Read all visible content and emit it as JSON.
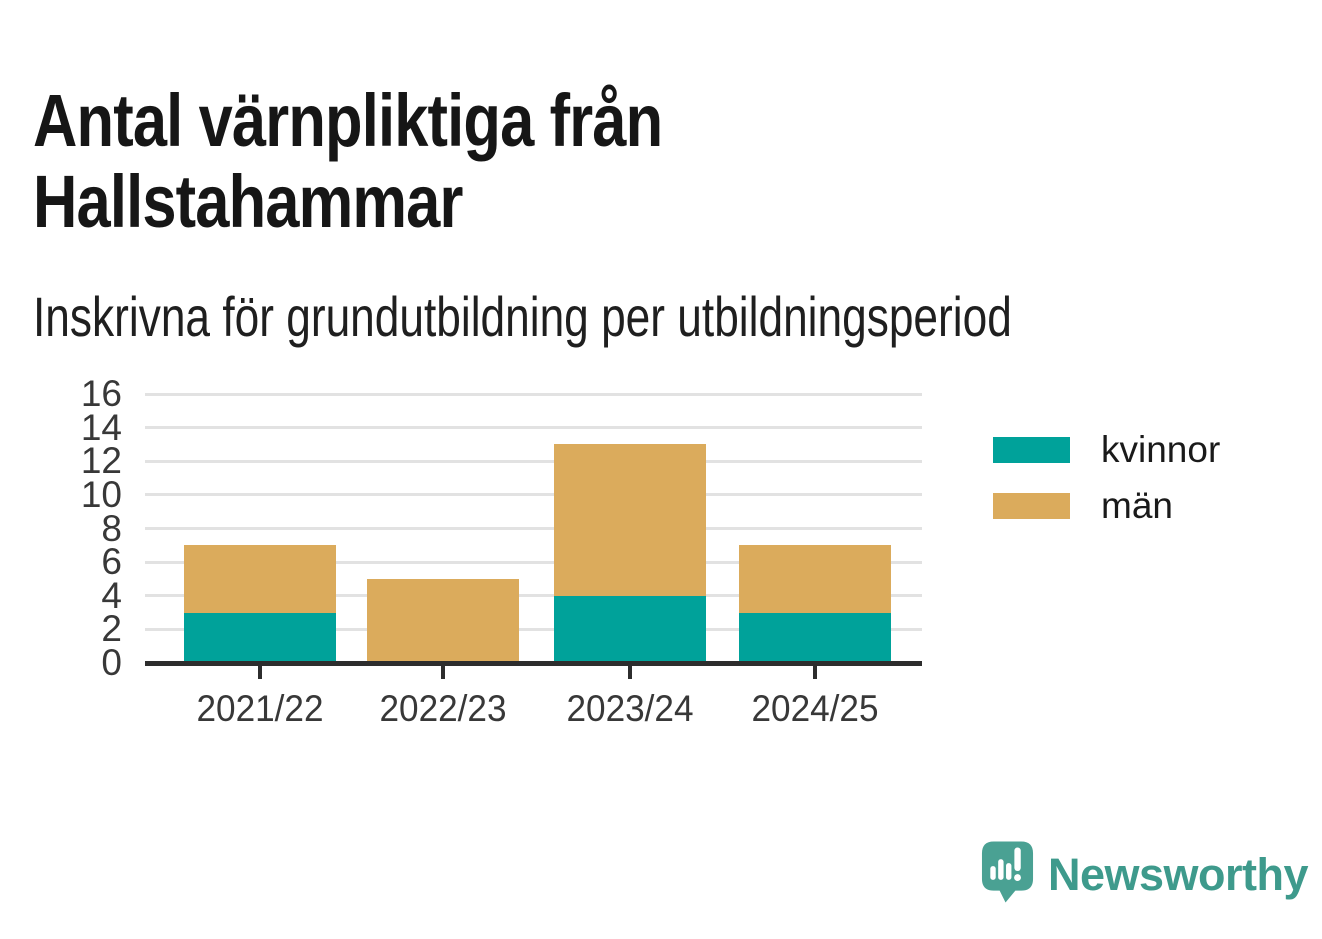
{
  "chart_data": {
    "type": "bar",
    "stacked": true,
    "title": "Antal värnpliktiga från Hallstahammar",
    "subtitle": "Inskrivna för grundutbildning per utbildningsperiod",
    "categories": [
      "2021/22",
      "2022/23",
      "2023/24",
      "2024/25"
    ],
    "series": [
      {
        "name": "kvinnor",
        "color": "#00A29A",
        "values": [
          3,
          0,
          4,
          3
        ]
      },
      {
        "name": "män",
        "color": "#DBAB5C",
        "values": [
          4,
          5,
          9,
          4
        ]
      }
    ],
    "totals": [
      7,
      5,
      13,
      7
    ],
    "xlabel": "",
    "ylabel": "",
    "ylim": [
      0,
      16
    ],
    "yticks": [
      0,
      2,
      4,
      6,
      8,
      10,
      12,
      14,
      16
    ],
    "grid": "horizontal",
    "gridline_color": "#e2e2e2",
    "axis_color": "#2d2d2d",
    "legend_position": "right-top"
  },
  "footer": {
    "brand": "Newsworthy",
    "brand_color": "#3E9A8C",
    "logo_icon": "newsworthy-speech-bubble-bar-chart-icon"
  }
}
